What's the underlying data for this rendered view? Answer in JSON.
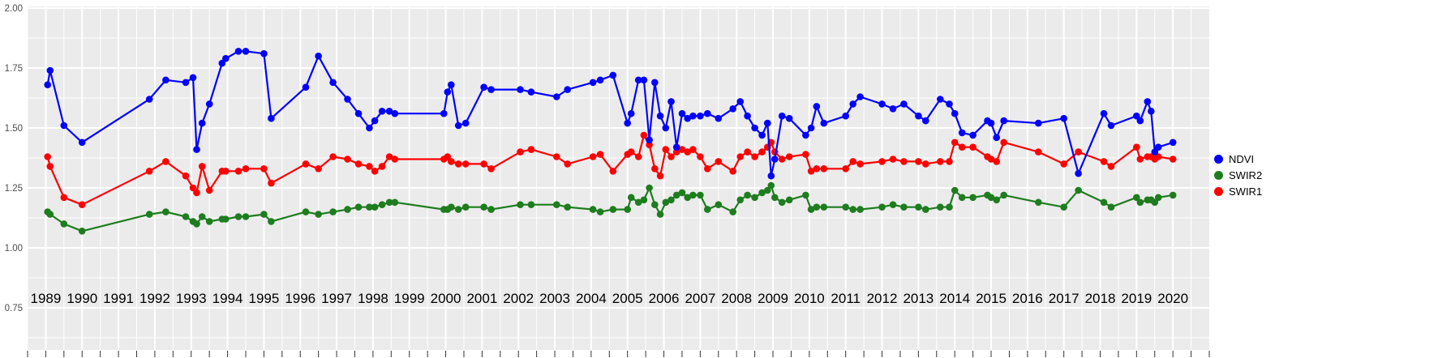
{
  "legend": {
    "items": [
      {
        "label": "NDVI",
        "color": "#0000ff"
      },
      {
        "label": "SWIR2",
        "color": "#1e7d1e"
      },
      {
        "label": "SWIR1",
        "color": "#ff0000"
      }
    ]
  },
  "axes": {
    "y_tick_labels": [
      "2.00",
      "1.75",
      "1.50",
      "1.25",
      "1.00",
      "0.75"
    ],
    "y_tick_values": [
      2.0,
      1.75,
      1.5,
      1.25,
      1.0,
      0.75
    ],
    "x_tick_labels": [
      "1989",
      "1990",
      "1991",
      "1992",
      "1993",
      "1994",
      "1995",
      "1996",
      "1997",
      "1998",
      "1999",
      "2000",
      "2001",
      "2002",
      "2003",
      "2004",
      "2005",
      "2006",
      "2007",
      "2008",
      "2009",
      "2010",
      "2011",
      "2012",
      "2013",
      "2014",
      "2015",
      "2016",
      "2017",
      "2018",
      "2019",
      "2020"
    ]
  },
  "chart_data": {
    "type": "line",
    "title": "",
    "xlabel": "",
    "ylabel": "",
    "panel_bg": "#ebebeb",
    "grid_color": "#ffffff",
    "x_range": [
      1988.5,
      2021.0
    ],
    "y_major_ticks": [
      0.75,
      1.0,
      1.25,
      1.5,
      1.75,
      2.0
    ],
    "y_minor_ticks": [
      0.625,
      0.875,
      1.125,
      1.375,
      1.625,
      1.875
    ],
    "legend_position": "right",
    "x": [
      1989.05,
      1989.12,
      1989.5,
      1990.0,
      1991.85,
      1992.3,
      1992.85,
      1993.05,
      1993.15,
      1993.3,
      1993.5,
      1993.85,
      1993.95,
      1994.3,
      1994.5,
      1995.0,
      1995.2,
      1996.15,
      1996.5,
      1996.9,
      1997.3,
      1997.6,
      1997.9,
      1998.05,
      1998.25,
      1998.45,
      1998.6,
      1999.95,
      2000.05,
      2000.15,
      2000.35,
      2000.55,
      2001.05,
      2001.25,
      2002.05,
      2002.35,
      2003.05,
      2003.35,
      2004.05,
      2004.25,
      2004.6,
      2005.0,
      2005.1,
      2005.3,
      2005.45,
      2005.6,
      2005.75,
      2005.9,
      2006.05,
      2006.2,
      2006.35,
      2006.5,
      2006.65,
      2006.8,
      2007.0,
      2007.2,
      2007.5,
      2007.9,
      2008.1,
      2008.3,
      2008.5,
      2008.7,
      2008.85,
      2008.95,
      2009.05,
      2009.25,
      2009.45,
      2009.9,
      2010.05,
      2010.2,
      2010.4,
      2011.0,
      2011.2,
      2011.4,
      2012.0,
      2012.3,
      2012.6,
      2013.0,
      2013.2,
      2013.6,
      2013.85,
      2014.0,
      2014.2,
      2014.5,
      2014.9,
      2015.0,
      2015.15,
      2015.35,
      2016.3,
      2017.0,
      2017.4,
      2018.1,
      2018.3,
      2019.0,
      2019.1,
      2019.3,
      2019.4,
      2019.5,
      2019.6,
      2020.0
    ],
    "series": [
      {
        "name": "NDVI",
        "color": "#0000ff",
        "values": [
          1.68,
          1.74,
          1.51,
          1.44,
          1.62,
          1.7,
          1.69,
          1.71,
          1.41,
          1.52,
          1.6,
          1.77,
          1.79,
          1.82,
          1.82,
          1.81,
          1.54,
          1.67,
          1.8,
          1.69,
          1.62,
          1.56,
          1.5,
          1.53,
          1.57,
          1.57,
          1.56,
          1.56,
          1.65,
          1.68,
          1.51,
          1.52,
          1.67,
          1.66,
          1.66,
          1.65,
          1.63,
          1.66,
          1.69,
          1.7,
          1.72,
          1.52,
          1.56,
          1.7,
          1.7,
          1.45,
          1.69,
          1.55,
          1.5,
          1.61,
          1.42,
          1.56,
          1.54,
          1.55,
          1.55,
          1.56,
          1.54,
          1.58,
          1.61,
          1.55,
          1.5,
          1.47,
          1.52,
          1.3,
          1.37,
          1.55,
          1.54,
          1.47,
          1.5,
          1.59,
          1.52,
          1.55,
          1.6,
          1.63,
          1.6,
          1.58,
          1.6,
          1.55,
          1.53,
          1.62,
          1.6,
          1.56,
          1.48,
          1.47,
          1.53,
          1.52,
          1.46,
          1.53,
          1.52,
          1.54,
          1.31,
          1.56,
          1.51,
          1.55,
          1.53,
          1.61,
          1.57,
          1.4,
          1.42,
          1.44
        ]
      },
      {
        "name": "SWIR2",
        "color": "#1e7d1e",
        "values": [
          1.15,
          1.14,
          1.1,
          1.07,
          1.14,
          1.15,
          1.13,
          1.11,
          1.1,
          1.13,
          1.11,
          1.12,
          1.12,
          1.13,
          1.13,
          1.14,
          1.11,
          1.15,
          1.14,
          1.15,
          1.16,
          1.17,
          1.17,
          1.17,
          1.18,
          1.19,
          1.19,
          1.16,
          1.16,
          1.17,
          1.16,
          1.17,
          1.17,
          1.16,
          1.18,
          1.18,
          1.18,
          1.17,
          1.16,
          1.15,
          1.16,
          1.16,
          1.21,
          1.19,
          1.2,
          1.25,
          1.18,
          1.14,
          1.19,
          1.2,
          1.22,
          1.23,
          1.21,
          1.22,
          1.22,
          1.16,
          1.18,
          1.15,
          1.2,
          1.22,
          1.21,
          1.23,
          1.24,
          1.26,
          1.21,
          1.19,
          1.2,
          1.22,
          1.16,
          1.17,
          1.17,
          1.17,
          1.16,
          1.16,
          1.17,
          1.18,
          1.17,
          1.17,
          1.16,
          1.17,
          1.17,
          1.24,
          1.21,
          1.21,
          1.22,
          1.21,
          1.2,
          1.22,
          1.19,
          1.17,
          1.24,
          1.19,
          1.17,
          1.21,
          1.19,
          1.2,
          1.2,
          1.19,
          1.21,
          1.22
        ]
      },
      {
        "name": "SWIR1",
        "color": "#ff0000",
        "values": [
          1.38,
          1.34,
          1.21,
          1.18,
          1.32,
          1.36,
          1.3,
          1.25,
          1.23,
          1.34,
          1.24,
          1.32,
          1.32,
          1.32,
          1.33,
          1.33,
          1.27,
          1.35,
          1.33,
          1.38,
          1.37,
          1.35,
          1.34,
          1.32,
          1.34,
          1.38,
          1.37,
          1.37,
          1.38,
          1.36,
          1.35,
          1.35,
          1.35,
          1.33,
          1.4,
          1.41,
          1.38,
          1.35,
          1.38,
          1.39,
          1.32,
          1.39,
          1.4,
          1.38,
          1.47,
          1.43,
          1.33,
          1.3,
          1.41,
          1.38,
          1.4,
          1.41,
          1.4,
          1.41,
          1.38,
          1.33,
          1.36,
          1.32,
          1.38,
          1.4,
          1.38,
          1.4,
          1.42,
          1.44,
          1.4,
          1.37,
          1.38,
          1.39,
          1.32,
          1.33,
          1.33,
          1.33,
          1.36,
          1.35,
          1.36,
          1.37,
          1.36,
          1.36,
          1.35,
          1.36,
          1.36,
          1.44,
          1.42,
          1.42,
          1.38,
          1.37,
          1.36,
          1.44,
          1.4,
          1.35,
          1.4,
          1.36,
          1.34,
          1.42,
          1.37,
          1.38,
          1.38,
          1.37,
          1.38,
          1.37
        ]
      }
    ]
  }
}
